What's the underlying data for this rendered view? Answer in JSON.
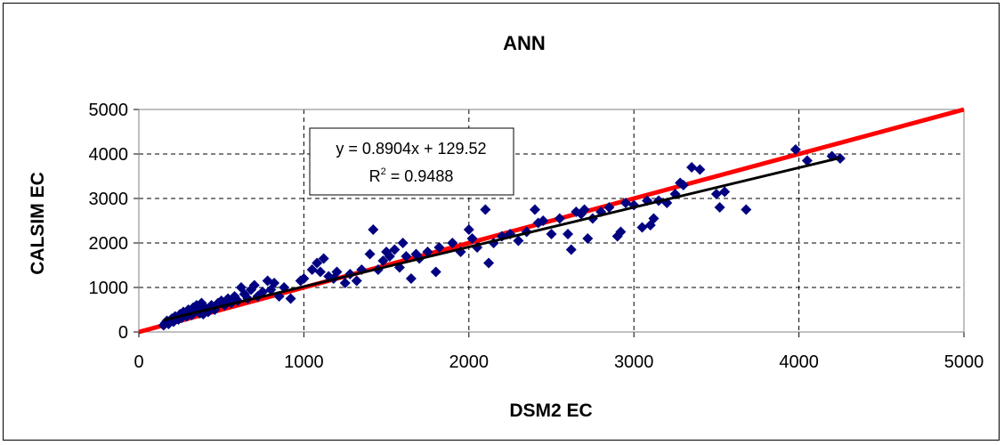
{
  "chart_data": {
    "type": "scatter",
    "title": "ANN",
    "xlabel": "DSM2 EC",
    "ylabel": "CALSIM EC",
    "xlim": [
      0,
      5000
    ],
    "ylim": [
      0,
      5000
    ],
    "x_ticks": [
      "0",
      "1000",
      "2000",
      "3000",
      "4000",
      "5000"
    ],
    "y_ticks": [
      "0",
      "1000",
      "2000",
      "3000",
      "4000",
      "5000"
    ],
    "grid": "dashed major gridlines",
    "marker_color": "#000080",
    "one_to_one_line_color": "#ff0000",
    "trend_line_color": "#000000",
    "trendline": {
      "equation": "y = 0.8904x + 129.52",
      "r2_label": "R",
      "r2_sup": "2",
      "r2_value": " = 0.9488",
      "slope": 0.8904,
      "intercept": 129.52,
      "x_range": [
        150,
        4250
      ]
    },
    "one_to_one": [
      [
        0,
        0
      ],
      [
        5000,
        5000
      ]
    ],
    "points": [
      [
        150,
        150
      ],
      [
        160,
        200
      ],
      [
        170,
        250
      ],
      [
        180,
        180
      ],
      [
        200,
        300
      ],
      [
        210,
        230
      ],
      [
        220,
        350
      ],
      [
        240,
        280
      ],
      [
        250,
        400
      ],
      [
        260,
        320
      ],
      [
        270,
        450
      ],
      [
        290,
        350
      ],
      [
        300,
        500
      ],
      [
        310,
        420
      ],
      [
        320,
        380
      ],
      [
        330,
        550
      ],
      [
        340,
        450
      ],
      [
        350,
        600
      ],
      [
        360,
        500
      ],
      [
        370,
        420
      ],
      [
        380,
        650
      ],
      [
        390,
        400
      ],
      [
        400,
        550
      ],
      [
        420,
        450
      ],
      [
        440,
        600
      ],
      [
        460,
        500
      ],
      [
        480,
        650
      ],
      [
        500,
        700
      ],
      [
        520,
        600
      ],
      [
        540,
        750
      ],
      [
        560,
        650
      ],
      [
        580,
        800
      ],
      [
        600,
        700
      ],
      [
        620,
        1000
      ],
      [
        640,
        850
      ],
      [
        660,
        750
      ],
      [
        680,
        950
      ],
      [
        700,
        1050
      ],
      [
        720,
        800
      ],
      [
        750,
        900
      ],
      [
        780,
        1150
      ],
      [
        800,
        950
      ],
      [
        820,
        1100
      ],
      [
        850,
        800
      ],
      [
        880,
        1000
      ],
      [
        920,
        750
      ],
      [
        980,
        1150
      ],
      [
        1000,
        1200
      ],
      [
        1050,
        1400
      ],
      [
        1080,
        1550
      ],
      [
        1100,
        1350
      ],
      [
        1120,
        1650
      ],
      [
        1150,
        1250
      ],
      [
        1180,
        1200
      ],
      [
        1200,
        1350
      ],
      [
        1250,
        1100
      ],
      [
        1280,
        1300
      ],
      [
        1320,
        1150
      ],
      [
        1350,
        1400
      ],
      [
        1400,
        1750
      ],
      [
        1420,
        2300
      ],
      [
        1450,
        1400
      ],
      [
        1480,
        1600
      ],
      [
        1500,
        1800
      ],
      [
        1520,
        1700
      ],
      [
        1550,
        1850
      ],
      [
        1580,
        1450
      ],
      [
        1600,
        2000
      ],
      [
        1620,
        1700
      ],
      [
        1650,
        1200
      ],
      [
        1680,
        1750
      ],
      [
        1700,
        1650
      ],
      [
        1750,
        1800
      ],
      [
        1800,
        1350
      ],
      [
        1820,
        1900
      ],
      [
        1900,
        2000
      ],
      [
        1950,
        1800
      ],
      [
        2000,
        2300
      ],
      [
        2020,
        2100
      ],
      [
        2050,
        1900
      ],
      [
        2100,
        2750
      ],
      [
        2120,
        1550
      ],
      [
        2150,
        2000
      ],
      [
        2200,
        2150
      ],
      [
        2250,
        2200
      ],
      [
        2300,
        2050
      ],
      [
        2350,
        2250
      ],
      [
        2400,
        2750
      ],
      [
        2420,
        2450
      ],
      [
        2450,
        2500
      ],
      [
        2500,
        2200
      ],
      [
        2550,
        2550
      ],
      [
        2600,
        2200
      ],
      [
        2620,
        1850
      ],
      [
        2650,
        2700
      ],
      [
        2680,
        2650
      ],
      [
        2700,
        2750
      ],
      [
        2720,
        2100
      ],
      [
        2750,
        2550
      ],
      [
        2800,
        2700
      ],
      [
        2850,
        2800
      ],
      [
        2900,
        2150
      ],
      [
        2920,
        2250
      ],
      [
        2950,
        2900
      ],
      [
        3000,
        2850
      ],
      [
        3050,
        2350
      ],
      [
        3080,
        2950
      ],
      [
        3100,
        2400
      ],
      [
        3120,
        2550
      ],
      [
        3150,
        2950
      ],
      [
        3200,
        2900
      ],
      [
        3250,
        3100
      ],
      [
        3280,
        3350
      ],
      [
        3300,
        3300
      ],
      [
        3350,
        3700
      ],
      [
        3400,
        3650
      ],
      [
        3500,
        3100
      ],
      [
        3520,
        2800
      ],
      [
        3550,
        3150
      ],
      [
        3680,
        2750
      ],
      [
        3980,
        4100
      ],
      [
        4050,
        3850
      ],
      [
        4200,
        3950
      ],
      [
        4250,
        3900
      ]
    ]
  }
}
